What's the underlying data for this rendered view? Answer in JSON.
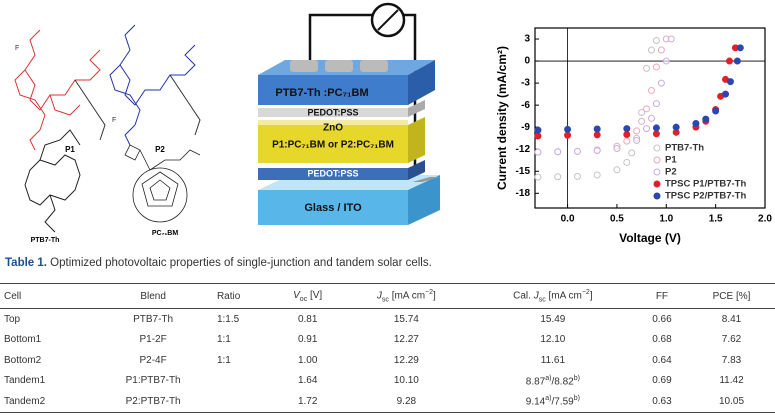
{
  "structures": {
    "p1_fluorine": "F",
    "p1_label": "P1",
    "p2_fluorine": "F",
    "p2_label": "P2",
    "ptb7_label": "PTB7-Th",
    "pcbm_label": "PC₇₁BM"
  },
  "device": {
    "layers": [
      "PTB7-Th :PC₇₁BM",
      "PEDOT:PSS",
      "ZnO",
      "P1:PC₇₁BM or P2:PC₇₁BM",
      "PEDOT:PSS",
      "Glass / ITO"
    ]
  },
  "chart_data": {
    "type": "scatter",
    "x_label": "Voltage (V)",
    "y_label": "Current density (mA/cm²)",
    "xlim": [
      -0.33,
      2.0
    ],
    "ylim": [
      -20,
      4.5
    ],
    "xticks": [
      {
        "value": 0,
        "label": "0.0"
      },
      {
        "value": 0.5,
        "label": "0.5"
      },
      {
        "value": 1,
        "label": "1.0"
      },
      {
        "value": 1.5,
        "label": "1.5"
      },
      {
        "value": 2,
        "label": "2.0"
      }
    ],
    "yticks": [
      3,
      0,
      -3,
      -6,
      -9,
      -12,
      -15,
      -18
    ],
    "legend": "lower right",
    "series": [
      {
        "name": "PTB7-Th",
        "color": "#c4c4c4",
        "filled": false,
        "x": [
          -0.3,
          -0.1,
          0.1,
          0.3,
          0.5,
          0.6,
          0.65,
          0.7,
          0.75,
          0.8,
          0.85,
          0.9
        ],
        "values": [
          -15.8,
          -15.75,
          -15.7,
          -15.5,
          -14.8,
          -13.8,
          -12.5,
          -10.5,
          -7,
          -1,
          1.5,
          2.8
        ]
      },
      {
        "name": "P1",
        "color": "#eea6bf",
        "filled": false,
        "x": [
          -0.3,
          -0.1,
          0.1,
          0.3,
          0.5,
          0.6,
          0.7,
          0.75,
          0.8,
          0.85,
          0.9,
          0.95,
          1.0
        ],
        "values": [
          -12.4,
          -12.35,
          -12.3,
          -12.1,
          -11.6,
          -10.9,
          -9.5,
          -8.2,
          -6.5,
          -4,
          -0.8,
          1.5,
          3
        ]
      },
      {
        "name": "P2",
        "color": "#c6aee0",
        "filled": false,
        "x": [
          -0.3,
          -0.1,
          0.1,
          0.3,
          0.5,
          0.7,
          0.8,
          0.85,
          0.9,
          0.95,
          1.0,
          1.05
        ],
        "values": [
          -12.4,
          -12.35,
          -12.3,
          -12.2,
          -11.9,
          -10.8,
          -9.2,
          -7.8,
          -5.8,
          -3,
          0,
          3
        ]
      },
      {
        "name": "TPSC P1/PTB7-Th",
        "color": "#e3202a",
        "filled": true,
        "x": [
          -0.3,
          0,
          0.3,
          0.6,
          0.9,
          1.1,
          1.3,
          1.4,
          1.5,
          1.55,
          1.6,
          1.64,
          1.7
        ],
        "values": [
          -10.2,
          -10.1,
          -10.05,
          -10,
          -9.9,
          -9.7,
          -9,
          -8.2,
          -6.6,
          -4.8,
          -2.5,
          0,
          1.8
        ]
      },
      {
        "name": "TPSC P2/PTB7-Th",
        "color": "#2a48ae",
        "filled": true,
        "x": [
          -0.3,
          0,
          0.3,
          0.6,
          0.9,
          1.1,
          1.3,
          1.4,
          1.5,
          1.6,
          1.65,
          1.72,
          1.75
        ],
        "values": [
          -9.4,
          -9.3,
          -9.25,
          -9.2,
          -9.1,
          -9,
          -8.5,
          -7.9,
          -6.8,
          -4.5,
          -2.8,
          0,
          1.8
        ]
      }
    ]
  },
  "table": {
    "caption": {
      "label": "Table 1.",
      "text": "Optimized photovoltaic properties of single-junction and tandem solar cells."
    },
    "headers": [
      "Cell",
      "Blend",
      "Ratio",
      {
        "main": "V",
        "sub": "oc",
        "rest": " [V]"
      },
      {
        "main": "J",
        "sub": "sc",
        "rest": " [mA cm",
        "sup": "−2",
        "end": "]"
      },
      {
        "pre": "Cal. ",
        "main": "J",
        "sub": "sc",
        "rest": " [mA cm",
        "sup": "−2",
        "end": "]"
      },
      "FF",
      "PCE [%]"
    ],
    "rows": [
      [
        "Top",
        "PTB7-Th",
        "1:1.5",
        "0.81",
        "15.74",
        "15.49",
        "0.66",
        "8.41"
      ],
      [
        "Bottom1",
        "P1-2F",
        "1:1",
        "0.91",
        "12.27",
        "12.10",
        "0.68",
        "7.62"
      ],
      [
        "Bottom2",
        "P2-4F",
        "1:1",
        "1.00",
        "12.29",
        "11.61",
        "0.64",
        "7.83"
      ],
      [
        "Tandem1",
        "P1:PTB7-Th",
        "",
        "1.64",
        "10.10",
        {
          "v1": "8.87",
          "n1": "a)",
          "v2": "/8.82",
          "n2": "b)"
        },
        "0.69",
        "11.42"
      ],
      [
        "Tandem2",
        "P2:PTB7-Th",
        "",
        "1.72",
        "9.28",
        {
          "v1": "9.14",
          "n1": "a)",
          "v2": "/7.59",
          "n2": "b)"
        },
        "0.63",
        "10.05"
      ]
    ]
  }
}
